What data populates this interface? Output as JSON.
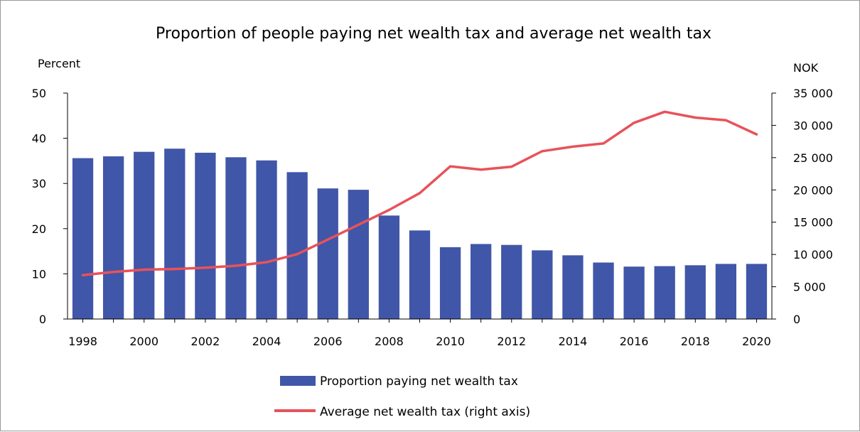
{
  "chart_data": {
    "type": "bar",
    "title": "Proportion of people paying net wealth tax and average net wealth tax",
    "y_left_label": "Percent",
    "y_right_label": "NOK",
    "y_left_range": [
      0,
      50
    ],
    "y_right_range": [
      0,
      35000
    ],
    "y_left_ticks": [
      "0",
      "10",
      "20",
      "30",
      "40",
      "50"
    ],
    "y_right_ticks": [
      "0",
      "5 000",
      "10 000",
      "15 000",
      "20 000",
      "25 000",
      "30 000",
      "35 000"
    ],
    "x_tick_labels": [
      "1998",
      "2000",
      "2002",
      "2004",
      "2006",
      "2008",
      "2010",
      "2012",
      "2014",
      "2016",
      "2018",
      "2020"
    ],
    "categories": [
      "1998",
      "1999",
      "2000",
      "2001",
      "2002",
      "2003",
      "2004",
      "2005",
      "2006",
      "2007",
      "2008",
      "2009",
      "2010",
      "2011",
      "2012",
      "2013",
      "2014",
      "2015",
      "2016",
      "2017",
      "2018",
      "2019",
      "2020"
    ],
    "series": [
      {
        "name": "Proportion paying net wealth tax",
        "type": "bar",
        "axis": "left",
        "color": "#4056A8",
        "values": [
          35.6,
          36.0,
          37.0,
          37.7,
          36.8,
          35.8,
          35.1,
          32.5,
          28.9,
          28.6,
          22.9,
          19.6,
          15.9,
          16.6,
          16.4,
          15.2,
          14.1,
          12.5,
          11.6,
          11.7,
          11.9,
          12.2,
          12.2
        ]
      },
      {
        "name": "Average net wealth tax (right axis)",
        "type": "line",
        "axis": "right",
        "color": "#E8525A",
        "values": [
          6800,
          7300,
          7650,
          7750,
          7950,
          8250,
          8800,
          10050,
          12300,
          14600,
          16900,
          19500,
          23650,
          23150,
          23600,
          26000,
          26700,
          27200,
          30400,
          32100,
          31200,
          30800,
          28600
        ]
      }
    ],
    "grid": false,
    "legend_position": "bottom"
  }
}
